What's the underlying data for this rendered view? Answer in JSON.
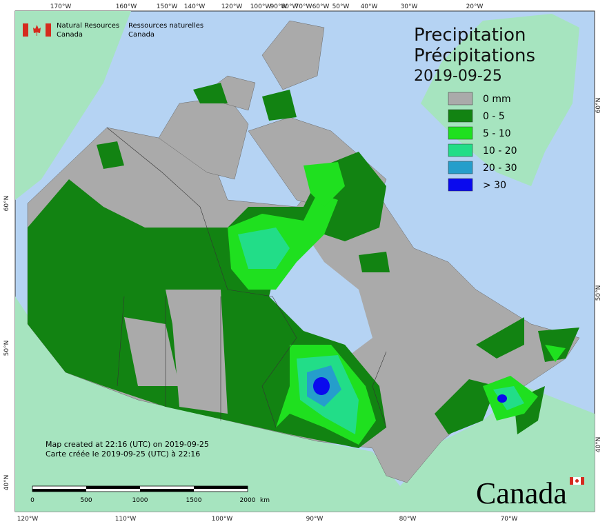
{
  "header": {
    "dept_en": [
      "Natural Resources",
      "Canada"
    ],
    "dept_fr": [
      "Ressources naturelles",
      "Canada"
    ]
  },
  "title": {
    "lines": [
      "Precipitation",
      "Précipitations",
      "2019-09-25"
    ]
  },
  "legend": [
    {
      "label": "0 mm",
      "color": "#aaaaaa"
    },
    {
      "label": "0 - 5",
      "color": "#128312"
    },
    {
      "label": "5 - 10",
      "color": "#1fe01f"
    },
    {
      "label": "10 - 20",
      "color": "#22dd88"
    },
    {
      "label": "20 - 30",
      "color": "#259ecb"
    },
    {
      "label": "> 30",
      "color": "#0a0aee"
    }
  ],
  "graticule": {
    "top": [
      "170°W",
      "160°W",
      "150°W",
      "140°W",
      "120°W",
      "100°W",
      "90°W",
      "80°W",
      "70°W",
      "60°W",
      "50°W",
      "40°W",
      "30°W",
      "20°W"
    ],
    "bottom": [
      "120°W",
      "110°W",
      "100°W",
      "90°W",
      "80°W",
      "70°W"
    ],
    "left": [
      "60°N",
      "50°N",
      "40°N"
    ],
    "right": [
      "60°N",
      "50°N",
      "40°N"
    ]
  },
  "scale_bar": {
    "ticks": [
      "0",
      "500",
      "1000",
      "1500",
      "2000"
    ],
    "unit": "km"
  },
  "notes": [
    "Map created at 22:16 (UTC) on 2019-09-25",
    "Carte créée le 2019-09-25 (UTC) à 22:16"
  ],
  "wordmark": "Canada"
}
